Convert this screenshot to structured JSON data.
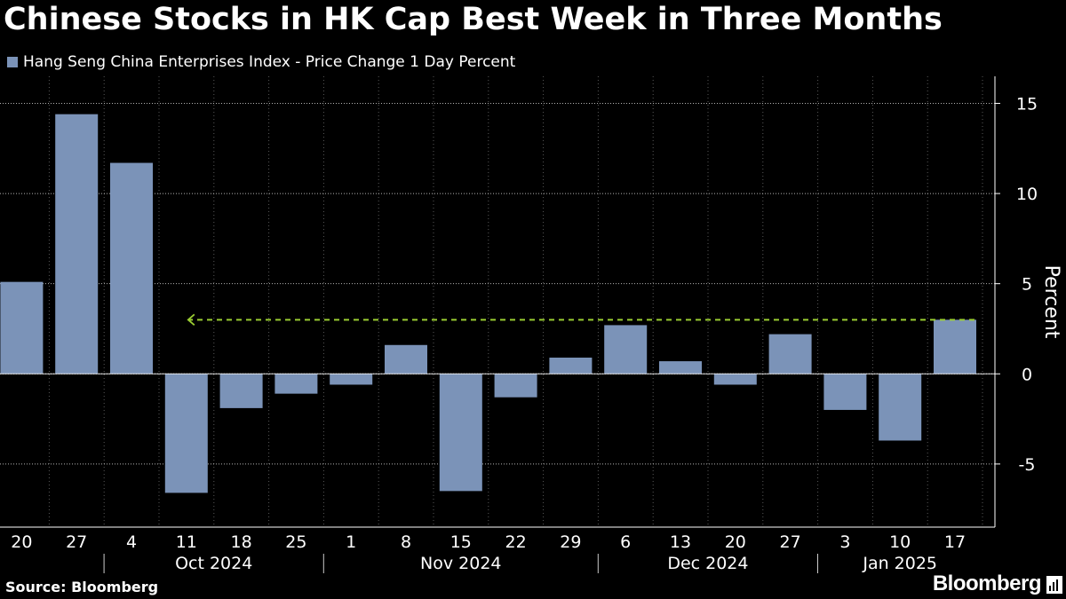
{
  "title": "Chinese Stocks in HK Cap Best Week in Three Months",
  "source": "Source: Bloomberg",
  "brand": "Bloomberg",
  "brand_icon": "chart-bars-icon",
  "colors": {
    "bar": "#7b93b8",
    "annotation": "#9acd32",
    "grid": "#ffffff",
    "background": "#000000"
  },
  "chart_data": {
    "type": "bar",
    "title": "Chinese Stocks in HK Cap Best Week in Three Months",
    "series": [
      {
        "name": "Hang Seng China Enterprises Index - Price Change 1 Day Percent",
        "values": [
          5.1,
          14.4,
          11.7,
          -6.6,
          -1.9,
          -1.1,
          -0.6,
          1.6,
          -6.5,
          -1.3,
          0.9,
          2.7,
          0.7,
          -0.6,
          2.2,
          -2.0,
          -3.7,
          3.0
        ]
      }
    ],
    "categories": [
      "20",
      "27",
      "4",
      "11",
      "18",
      "25",
      "1",
      "8",
      "15",
      "22",
      "29",
      "6",
      "13",
      "20",
      "27",
      "3",
      "10",
      "17"
    ],
    "months": [
      {
        "label": "Oct 2024",
        "start": 2,
        "end": 5
      },
      {
        "label": "Nov 2024",
        "start": 6,
        "end": 10
      },
      {
        "label": "Dec 2024",
        "start": 11,
        "end": 14
      },
      {
        "label": "Jan 2025",
        "start": 15,
        "end": 17
      }
    ],
    "ylabel": "Percent",
    "ylim": [
      -8.5,
      16.5
    ],
    "yticks": [
      15,
      10,
      5,
      0,
      -5
    ],
    "annotation": {
      "type": "dashed-arrow",
      "y": 3.0,
      "from_index": 17,
      "to_index": 3
    },
    "grid": true,
    "legend": "top-left"
  }
}
